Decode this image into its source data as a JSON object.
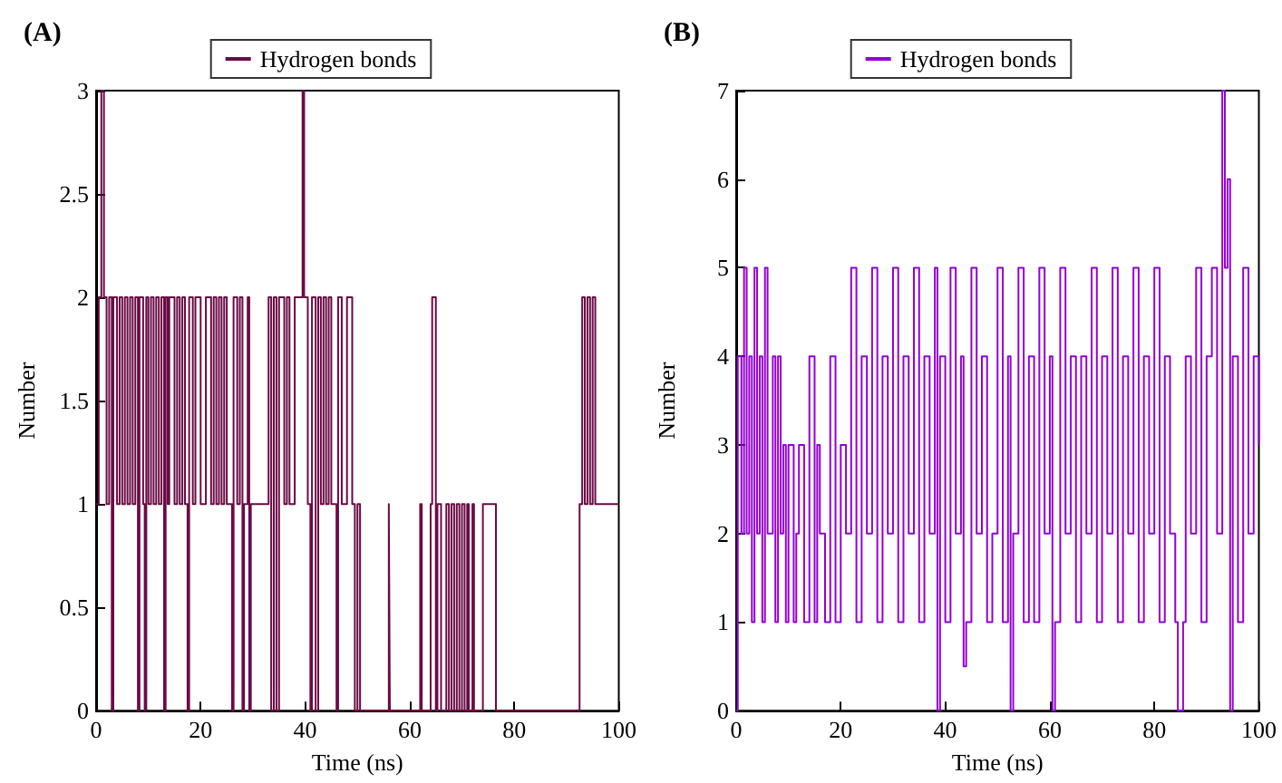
{
  "chart_data": [
    {
      "type": "step",
      "title": "(A)",
      "xlabel": "Time (ns)",
      "ylabel": "Number",
      "legend": "top",
      "marker": "none",
      "xlim": [
        0,
        100
      ],
      "xticks": [
        0,
        20,
        40,
        60,
        80,
        100
      ],
      "ylim": [
        0,
        3
      ],
      "yticks": [
        0,
        0.5,
        1,
        1.5,
        2,
        2.5,
        3
      ],
      "x": [
        0,
        0.5,
        1,
        1.5,
        2,
        2.5,
        3,
        3.3,
        4,
        4.5,
        5,
        5.5,
        6,
        6.5,
        7,
        7.5,
        8,
        8.3,
        9,
        9.3,
        9.6,
        10,
        10.5,
        11,
        11.5,
        12,
        12.5,
        13,
        13.3,
        13.7,
        14,
        15,
        15.5,
        16,
        16.5,
        17,
        17.5,
        17.8,
        18.5,
        19,
        20,
        21,
        22,
        22.5,
        23,
        23.5,
        24,
        24.5,
        25,
        26,
        26.3,
        27,
        27.5,
        28,
        28.3,
        29,
        29.3,
        29.6,
        30.5,
        33,
        33.5,
        34,
        34.5,
        35,
        36,
        36.5,
        37,
        38,
        39.5,
        39.8,
        40.5,
        41,
        41.3,
        42,
        42.5,
        43,
        43.5,
        44,
        44.5,
        45,
        46,
        46.3,
        47,
        48,
        49,
        49.5,
        50,
        50.5,
        56,
        56.2,
        62,
        62.3,
        64,
        64.3,
        65,
        65.3,
        66,
        67,
        67.5,
        68,
        68.5,
        69,
        69.5,
        70,
        70.5,
        71,
        71.3,
        72,
        72.3,
        74,
        76.5,
        92.5,
        93,
        93.5,
        94,
        94.5,
        95,
        95.5,
        100
      ],
      "series": [
        {
          "name": "Hydrogen bonds",
          "color": "#6b0a45",
          "values": [
            1,
            2,
            3,
            2,
            1,
            2,
            0,
            2,
            1,
            2,
            1,
            2,
            1,
            2,
            1,
            2,
            0,
            2,
            1,
            0,
            2,
            1,
            2,
            1,
            2,
            1,
            2,
            0,
            2,
            1,
            2,
            1,
            2,
            1,
            2,
            1,
            0,
            2,
            1,
            2,
            1,
            2,
            1,
            2,
            1,
            2,
            1,
            2,
            1,
            0,
            2,
            1,
            2,
            0,
            1,
            2,
            0,
            1,
            1,
            2,
            0,
            2,
            0,
            2,
            1,
            2,
            1,
            2,
            3,
            2,
            1,
            0,
            2,
            0,
            2,
            1,
            2,
            1,
            2,
            1,
            0,
            2,
            1,
            2,
            1,
            0,
            1,
            0,
            1,
            0,
            1,
            0,
            1,
            2,
            0,
            1,
            0,
            1,
            0,
            1,
            0,
            1,
            0,
            1,
            0,
            1,
            0,
            1,
            0,
            1,
            0,
            1,
            2,
            1,
            2,
            1,
            2,
            1,
            1
          ]
        }
      ]
    },
    {
      "type": "step",
      "title": "(B)",
      "xlabel": "Time (ns)",
      "ylabel": "Number",
      "legend": "top",
      "marker": "none",
      "xlim": [
        0,
        100
      ],
      "xticks": [
        0,
        20,
        40,
        60,
        80,
        100
      ],
      "ylim": [
        0,
        7
      ],
      "yticks": [
        0,
        1,
        2,
        3,
        4,
        5,
        6,
        7
      ],
      "x": [
        0,
        0.3,
        1,
        1.5,
        2,
        2.5,
        3,
        3.5,
        4,
        4.5,
        5,
        5.5,
        6,
        7,
        7.5,
        8,
        8.5,
        9,
        9.5,
        10,
        11,
        11.5,
        12,
        13,
        14,
        15,
        15.5,
        16,
        17,
        18,
        19,
        20,
        21,
        22,
        23,
        24,
        25,
        26,
        27,
        28,
        29,
        30,
        31,
        32,
        33,
        34,
        35,
        36,
        37,
        38,
        38.5,
        39,
        40,
        41,
        42,
        43,
        43.5,
        44,
        45,
        46,
        47,
        48,
        49,
        50,
        51,
        52,
        52.5,
        53,
        54,
        55,
        56,
        57,
        58,
        59,
        60,
        60.5,
        61,
        62,
        63,
        64,
        65,
        66,
        67,
        68,
        69,
        70,
        71,
        72,
        73,
        74,
        75,
        76,
        77,
        78,
        79,
        80,
        81,
        82,
        83,
        84,
        84.5,
        85.5,
        86,
        87,
        88,
        89,
        90,
        91,
        92,
        93,
        93.5,
        94,
        94.5,
        95,
        96,
        97,
        98,
        99,
        100
      ],
      "series": [
        {
          "name": "Hydrogen bonds",
          "color": "#9400d3",
          "values": [
            0,
            4,
            2,
            5,
            2,
            4,
            1,
            5,
            2,
            4,
            1,
            5,
            2,
            4,
            1,
            4,
            2,
            3,
            1,
            3,
            1,
            2,
            3,
            1,
            4,
            1,
            3,
            2,
            1,
            4,
            1,
            3,
            2,
            5,
            1,
            4,
            2,
            5,
            1,
            4,
            2,
            5,
            1,
            4,
            2,
            5,
            1,
            4,
            2,
            5,
            0,
            4,
            1,
            5,
            2,
            4,
            0.5,
            1,
            5,
            2,
            4,
            1,
            2,
            5,
            1,
            4,
            0,
            2,
            5,
            1,
            4,
            1,
            5,
            2,
            4,
            0,
            1,
            5,
            2,
            4,
            1,
            4,
            2,
            5,
            1,
            4,
            2,
            5,
            1,
            4,
            2,
            5,
            1,
            4,
            2,
            5,
            1,
            4,
            2,
            1,
            0,
            1,
            4,
            2,
            5,
            1,
            4,
            5,
            2,
            7,
            5,
            6,
            0,
            4,
            1,
            5,
            2,
            4,
            3
          ]
        }
      ]
    }
  ]
}
